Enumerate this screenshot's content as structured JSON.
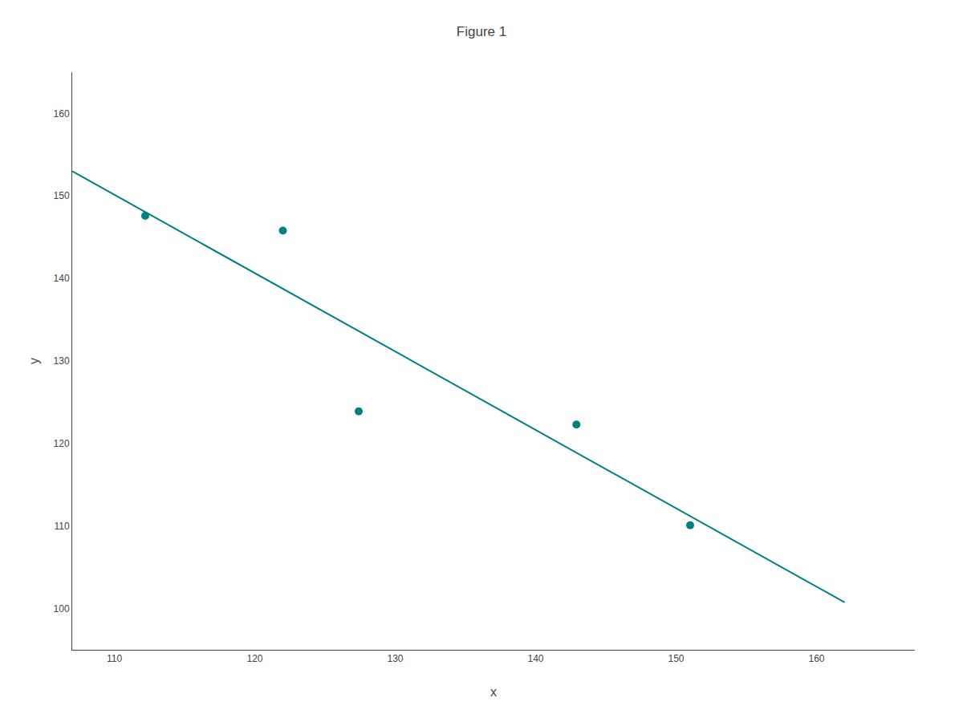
{
  "chart_data": {
    "type": "scatter",
    "title": "Figure 1",
    "x_label": "x",
    "y_label": "y",
    "series": [
      {
        "type": "scatter",
        "marker": "circle",
        "color": "#008080",
        "x": [
          112.2,
          122.0,
          127.4,
          142.9,
          151.0
        ],
        "values": [
          147.6,
          145.8,
          123.9,
          122.3,
          110.1
        ]
      },
      {
        "type": "line",
        "line_style": "solid",
        "color": "#008080",
        "x": [
          107,
          162
        ],
        "values": [
          153.0,
          100.75
        ]
      }
    ],
    "xlim": [
      107,
      167
    ],
    "ylim": [
      95,
      165
    ],
    "xticks": [
      110,
      120,
      130,
      140,
      150,
      160
    ],
    "yticks": [
      100,
      110,
      120,
      130,
      140,
      150,
      160
    ],
    "grid": false,
    "legend": false
  }
}
